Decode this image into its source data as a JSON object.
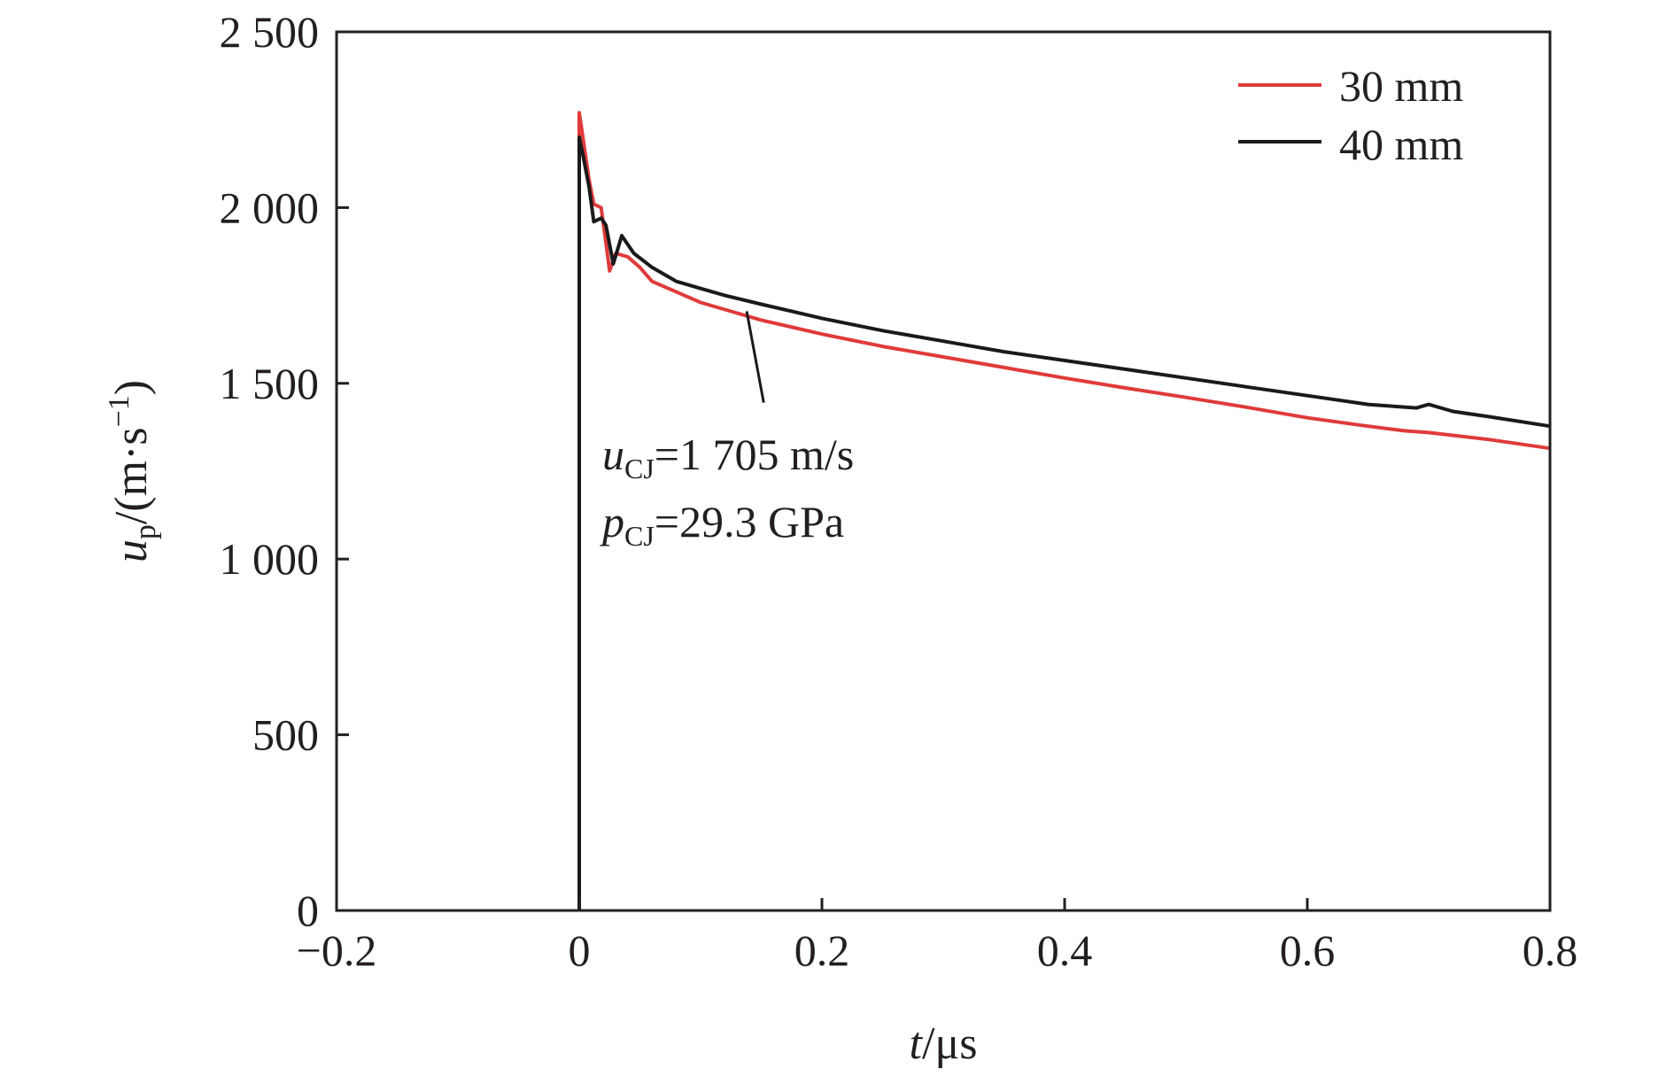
{
  "chart_data": {
    "type": "line",
    "title": "",
    "xlabel": {
      "var": "t",
      "unit": "/μs"
    },
    "ylabel": {
      "var": "u",
      "sub": "p",
      "unit_pre": "/(m·s",
      "sup": "−1",
      "unit_post": ")"
    },
    "xlim": [
      -0.2,
      0.8
    ],
    "ylim": [
      0,
      2500
    ],
    "xticks": [
      -0.2,
      0,
      0.2,
      0.4,
      0.6,
      0.8
    ],
    "xtick_labels": [
      "−0.2",
      "0",
      "0.2",
      "0.4",
      "0.6",
      "0.8"
    ],
    "yticks": [
      0,
      500,
      1000,
      1500,
      2000,
      2500
    ],
    "ytick_labels": [
      "0",
      "500",
      "1 000",
      "1 500",
      "2 000",
      "2 500"
    ],
    "grid": false,
    "legend_position": "top-right",
    "series": [
      {
        "name": "30 mm",
        "color": "#e03a3a",
        "points": [
          [
            0.0,
            0
          ],
          [
            0.0,
            2270
          ],
          [
            0.003,
            2200
          ],
          [
            0.008,
            2080
          ],
          [
            0.012,
            2010
          ],
          [
            0.018,
            2000
          ],
          [
            0.022,
            1900
          ],
          [
            0.025,
            1820
          ],
          [
            0.03,
            1870
          ],
          [
            0.04,
            1860
          ],
          [
            0.05,
            1830
          ],
          [
            0.06,
            1790
          ],
          [
            0.08,
            1760
          ],
          [
            0.1,
            1730
          ],
          [
            0.12,
            1710
          ],
          [
            0.15,
            1680
          ],
          [
            0.2,
            1640
          ],
          [
            0.25,
            1605
          ],
          [
            0.3,
            1575
          ],
          [
            0.35,
            1545
          ],
          [
            0.4,
            1515
          ],
          [
            0.45,
            1487
          ],
          [
            0.5,
            1460
          ],
          [
            0.55,
            1432
          ],
          [
            0.6,
            1402
          ],
          [
            0.65,
            1378
          ],
          [
            0.68,
            1365
          ],
          [
            0.7,
            1360
          ],
          [
            0.75,
            1340
          ],
          [
            0.8,
            1315
          ]
        ]
      },
      {
        "name": "40 mm",
        "color": "#1a1a1a",
        "points": [
          [
            0.0,
            0
          ],
          [
            0.0,
            2200
          ],
          [
            0.003,
            2150
          ],
          [
            0.008,
            2060
          ],
          [
            0.012,
            1960
          ],
          [
            0.018,
            1970
          ],
          [
            0.022,
            1950
          ],
          [
            0.028,
            1840
          ],
          [
            0.035,
            1920
          ],
          [
            0.045,
            1870
          ],
          [
            0.06,
            1830
          ],
          [
            0.08,
            1790
          ],
          [
            0.1,
            1770
          ],
          [
            0.12,
            1750
          ],
          [
            0.15,
            1725
          ],
          [
            0.2,
            1685
          ],
          [
            0.25,
            1650
          ],
          [
            0.3,
            1620
          ],
          [
            0.35,
            1590
          ],
          [
            0.4,
            1565
          ],
          [
            0.45,
            1540
          ],
          [
            0.5,
            1515
          ],
          [
            0.55,
            1490
          ],
          [
            0.6,
            1465
          ],
          [
            0.65,
            1440
          ],
          [
            0.69,
            1430
          ],
          [
            0.7,
            1440
          ],
          [
            0.72,
            1420
          ],
          [
            0.75,
            1405
          ],
          [
            0.8,
            1378
          ]
        ]
      }
    ],
    "annotation": {
      "arrow_from": [
        0.152,
        1445
      ],
      "arrow_to": [
        0.138,
        1705
      ],
      "line1": {
        "var": "u",
        "sub": "CJ",
        "text": "=1 705 m/s"
      },
      "line2": {
        "var": "p",
        "sub": "CJ",
        "text": "=29.3 GPa"
      }
    }
  }
}
